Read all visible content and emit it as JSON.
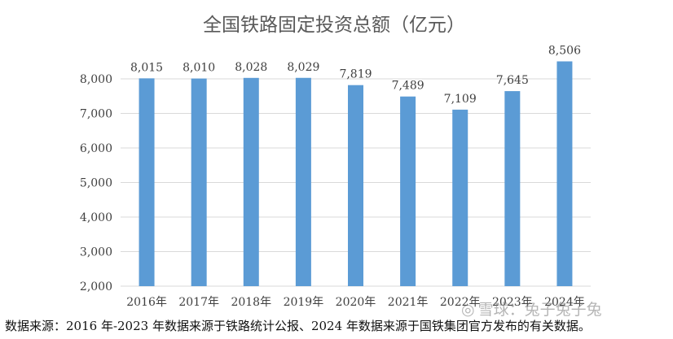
{
  "chart_data": {
    "type": "bar",
    "title": "全国铁路固定投资总额（亿元）",
    "xlabel": "",
    "ylabel": "",
    "categories": [
      "2016年",
      "2017年",
      "2018年",
      "2019年",
      "2020年",
      "2021年",
      "2022年",
      "2023年",
      "2024年"
    ],
    "values": [
      8015,
      8010,
      8028,
      8029,
      7819,
      7489,
      7109,
      7645,
      8506
    ],
    "value_labels": [
      "8,015",
      "8,010",
      "8,028",
      "8,029",
      "7,819",
      "7,489",
      "7,109",
      "7,645",
      "8,506"
    ],
    "y_ticks": [
      2000,
      3000,
      4000,
      5000,
      6000,
      7000,
      8000
    ],
    "y_tick_labels": [
      "2,000",
      "3,000",
      "4,000",
      "5,000",
      "6,000",
      "7,000",
      "8,000"
    ],
    "ylim": [
      2000,
      8800
    ],
    "grid": true,
    "bar_color": "#5b9bd5",
    "grid_color": "#d9d9d9"
  },
  "source_note": "数据来源：2016 年-2023 年数据来源于铁路统计公报、2024 年数据来源于国铁集团官方发布的有关数据。",
  "watermark": {
    "icon": "snowball-icon",
    "text": "雪球：兔子兔子兔"
  }
}
